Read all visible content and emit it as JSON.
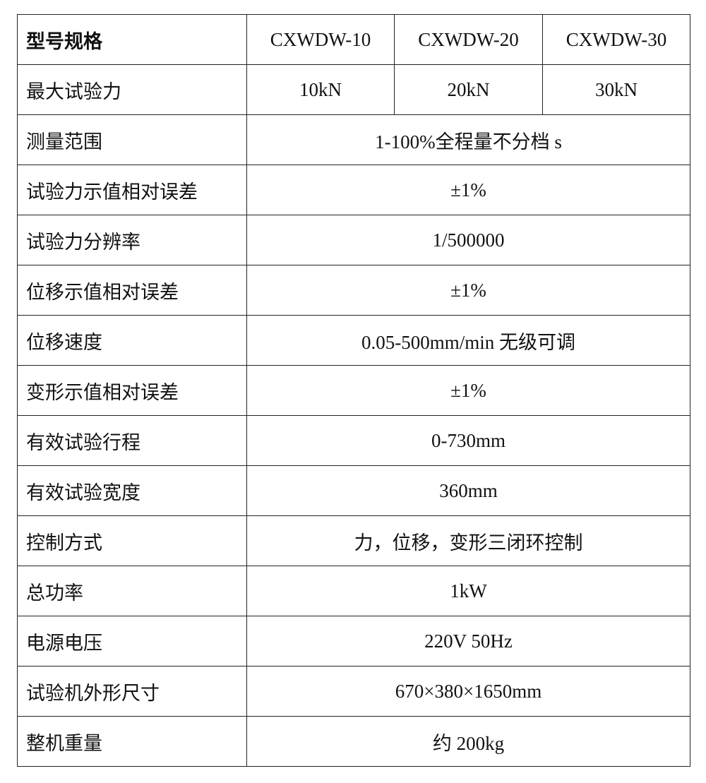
{
  "header": {
    "label": "型号规格",
    "models": [
      "CXWDW-10",
      "CXWDW-20",
      "CXWDW-30"
    ]
  },
  "max_force": {
    "label": "最大试验力",
    "values": [
      "10kN",
      "20kN",
      "30kN"
    ]
  },
  "rows": [
    {
      "label": "测量范围",
      "value": "1-100%全程量不分档 s"
    },
    {
      "label": "试验力示值相对误差",
      "value": "±1%"
    },
    {
      "label": "试验力分辨率",
      "value": "1/500000"
    },
    {
      "label": "位移示值相对误差",
      "value": "±1%"
    },
    {
      "label": "位移速度",
      "value": "0.05-500mm/min 无级可调"
    },
    {
      "label": "变形示值相对误差",
      "value": "±1%"
    },
    {
      "label": "有效试验行程",
      "value": "0-730mm"
    },
    {
      "label": "有效试验宽度",
      "value": "360mm"
    },
    {
      "label": "控制方式",
      "value": "力，位移，变形三闭环控制"
    },
    {
      "label": "总功率",
      "value": "1kW"
    },
    {
      "label": "电源电压",
      "value": "220V 50Hz"
    },
    {
      "label": "试验机外形尺寸",
      "value": "670×380×1650mm"
    },
    {
      "label": "整机重量",
      "value": "约 200kg"
    }
  ]
}
